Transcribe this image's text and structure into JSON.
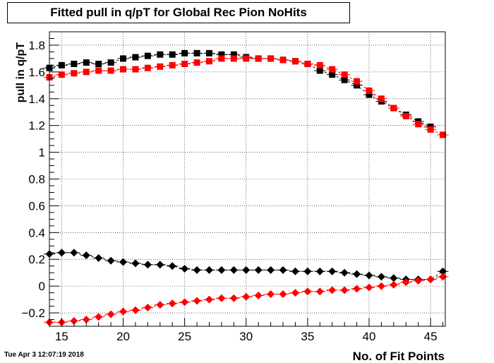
{
  "title": "Fitted pull in q/pT for Global Rec Pion NoHits",
  "timestamp": "Tue Apr  3 12:07:19 2018",
  "chart_data": {
    "type": "scatter",
    "title": "Fitted pull in q/pT for Global Rec Pion NoHits",
    "xlabel": "No. of Fit Points",
    "ylabel": "pull in q/pT",
    "xlim": [
      14,
      46.2
    ],
    "ylim": [
      -0.3,
      1.9
    ],
    "x_ticks": [
      15,
      20,
      25,
      30,
      35,
      40,
      45
    ],
    "y_ticks": [
      -0.2,
      0,
      0.2,
      0.4,
      0.6,
      0.8,
      1,
      1.2,
      1.4,
      1.6,
      1.8
    ],
    "y_tick_labels": [
      "−0.2",
      "0",
      "0.2",
      "0.4",
      "0.6",
      "0.8",
      "1",
      "1.2",
      "1.4",
      "1.6",
      "1.8"
    ],
    "grid": true,
    "series": [
      {
        "color": "#000000",
        "marker": "square",
        "x": [
          14,
          15,
          16,
          17,
          18,
          19,
          20,
          21,
          22,
          23,
          24,
          25,
          26,
          27,
          28,
          29,
          30,
          31,
          32,
          33,
          34,
          35,
          36,
          37,
          38,
          39,
          40,
          41,
          42,
          43,
          44,
          45
        ],
        "y": [
          1.63,
          1.65,
          1.66,
          1.67,
          1.66,
          1.67,
          1.7,
          1.71,
          1.72,
          1.73,
          1.73,
          1.74,
          1.74,
          1.74,
          1.73,
          1.73,
          1.71,
          1.7,
          1.7,
          1.69,
          1.68,
          1.66,
          1.61,
          1.58,
          1.54,
          1.5,
          1.43,
          1.38,
          1.33,
          1.28,
          1.23,
          1.19
        ]
      },
      {
        "color": "#ff0000",
        "marker": "square",
        "x": [
          14,
          15,
          16,
          17,
          18,
          19,
          20,
          21,
          22,
          23,
          24,
          25,
          26,
          27,
          28,
          29,
          30,
          31,
          32,
          33,
          34,
          35,
          36,
          37,
          38,
          39,
          40,
          41,
          42,
          43,
          44,
          45,
          46
        ],
        "y": [
          1.56,
          1.58,
          1.59,
          1.6,
          1.61,
          1.61,
          1.62,
          1.62,
          1.63,
          1.64,
          1.65,
          1.66,
          1.67,
          1.68,
          1.7,
          1.7,
          1.7,
          1.7,
          1.7,
          1.69,
          1.68,
          1.66,
          1.65,
          1.62,
          1.58,
          1.53,
          1.46,
          1.4,
          1.33,
          1.27,
          1.21,
          1.17,
          1.13
        ]
      },
      {
        "color": "#000000",
        "marker": "diamond",
        "x": [
          14,
          15,
          16,
          17,
          18,
          19,
          20,
          21,
          22,
          23,
          24,
          25,
          26,
          27,
          28,
          29,
          30,
          31,
          32,
          33,
          34,
          35,
          36,
          37,
          38,
          39,
          40,
          41,
          42,
          43,
          44,
          45,
          46
        ],
        "y": [
          0.24,
          0.25,
          0.25,
          0.23,
          0.21,
          0.19,
          0.18,
          0.17,
          0.16,
          0.16,
          0.15,
          0.13,
          0.12,
          0.12,
          0.12,
          0.12,
          0.12,
          0.12,
          0.12,
          0.12,
          0.11,
          0.11,
          0.11,
          0.11,
          0.1,
          0.09,
          0.08,
          0.07,
          0.06,
          0.05,
          0.05,
          0.05,
          0.11
        ]
      },
      {
        "color": "#ff0000",
        "marker": "diamond",
        "x": [
          14,
          15,
          16,
          17,
          18,
          19,
          20,
          21,
          22,
          23,
          24,
          25,
          26,
          27,
          28,
          29,
          30,
          31,
          32,
          33,
          34,
          35,
          36,
          37,
          38,
          39,
          40,
          41,
          42,
          43,
          44,
          45,
          46
        ],
        "y": [
          -0.27,
          -0.27,
          -0.26,
          -0.25,
          -0.23,
          -0.21,
          -0.19,
          -0.18,
          -0.16,
          -0.14,
          -0.13,
          -0.12,
          -0.11,
          -0.1,
          -0.09,
          -0.09,
          -0.08,
          -0.07,
          -0.06,
          -0.06,
          -0.05,
          -0.04,
          -0.04,
          -0.03,
          -0.03,
          -0.02,
          -0.01,
          0.0,
          0.01,
          0.03,
          0.04,
          0.05,
          0.07
        ]
      }
    ]
  }
}
